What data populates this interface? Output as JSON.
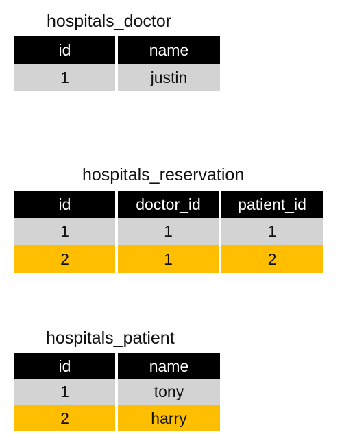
{
  "tables": [
    {
      "title": "hospitals_doctor",
      "columns": [
        "id",
        "name"
      ],
      "rows": [
        {
          "cells": [
            "1",
            "justin"
          ],
          "color": "#d3d3d3"
        }
      ]
    },
    {
      "title": "hospitals_reservation",
      "columns": [
        "id",
        "doctor_id",
        "patient_id"
      ],
      "rows": [
        {
          "cells": [
            "1",
            "1",
            "1"
          ],
          "color": "#d3d3d3"
        },
        {
          "cells": [
            "2",
            "1",
            "2"
          ],
          "color": "#ffbf00"
        }
      ]
    },
    {
      "title": "hospitals_patient",
      "columns": [
        "id",
        "name"
      ],
      "rows": [
        {
          "cells": [
            "1",
            "tony"
          ],
          "color": "#d3d3d3"
        },
        {
          "cells": [
            "2",
            "harry"
          ],
          "color": "#ffbf00"
        }
      ]
    }
  ],
  "colors": {
    "header_bg": "#000000",
    "header_text": "#ffffff",
    "row_grey": "#d3d3d3",
    "row_highlight": "#ffbf00"
  }
}
